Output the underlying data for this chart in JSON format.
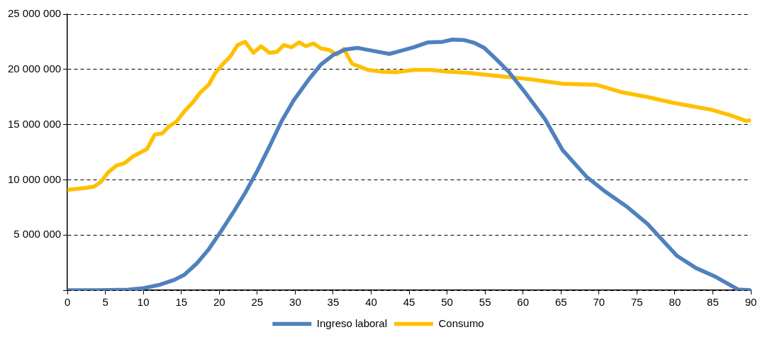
{
  "chart_data": {
    "type": "line",
    "xlim": [
      0,
      90
    ],
    "xticks": [
      0,
      5,
      10,
      15,
      20,
      25,
      30,
      35,
      40,
      45,
      50,
      55,
      60,
      65,
      70,
      75,
      80,
      85,
      90
    ],
    "ylim": [
      0,
      25000000
    ],
    "yticks": [
      {
        "value": 0,
        "label": null
      },
      {
        "value": 5000000,
        "label": "5 000 000"
      },
      {
        "value": 10000000,
        "label": "10 000 000"
      },
      {
        "value": 15000000,
        "label": "15 000 000"
      },
      {
        "value": 20000000,
        "label": "20 000 000"
      },
      {
        "value": 25000000,
        "label": "25 000 000"
      }
    ],
    "grid": "y",
    "legend": "bottom",
    "marker": "none",
    "line_style": "solid",
    "series": [
      {
        "name": "Ingreso laboral",
        "color": "#4f81bd",
        "x": [
          0,
          4,
          8,
          9.9,
          12.2,
          14.1,
          15.4,
          17,
          18.6,
          20.2,
          21.8,
          23.4,
          25,
          26.6,
          28.2,
          29.8,
          31.8,
          33.4,
          35,
          36.6,
          38.2,
          40.1,
          42.4,
          44,
          45.6,
          47.5,
          49.4,
          50.7,
          52.3,
          53.6,
          54.9,
          56.5,
          58.1,
          60.4,
          62.9,
          65.2,
          68.4,
          70.6,
          73.8,
          76.4,
          80.3,
          82.8,
          85.4,
          88.3,
          90
        ],
        "values": [
          0,
          0,
          50000,
          170000,
          500000,
          940000,
          1400000,
          2400000,
          3700000,
          5300000,
          7000000,
          8800000,
          10800000,
          13000000,
          15300000,
          17200000,
          19100000,
          20450000,
          21300000,
          21800000,
          21950000,
          21700000,
          21400000,
          21700000,
          22000000,
          22450000,
          22500000,
          22700000,
          22650000,
          22400000,
          21950000,
          20900000,
          19800000,
          17800000,
          15500000,
          12700000,
          10250000,
          9050000,
          7500000,
          6000000,
          3100000,
          2000000,
          1200000,
          70000,
          0
        ]
      },
      {
        "name": "Consumo",
        "color": "#ffc000",
        "x": [
          0,
          2.5,
          3.5,
          4.4,
          5.4,
          6.5,
          7.5,
          8.6,
          10.5,
          11.5,
          12.5,
          13.4,
          14.4,
          15.4,
          16.5,
          17.5,
          18.6,
          19.5,
          20.5,
          21.5,
          22.4,
          23.4,
          24.5,
          25.5,
          26.6,
          27.6,
          28.5,
          29.5,
          30.5,
          31.4,
          32.4,
          33.4,
          34.5,
          35.5,
          36.4,
          37.5,
          38.5,
          39.6,
          41.4,
          43.3,
          45.6,
          47.8,
          50.1,
          52.7,
          54.6,
          57.5,
          61,
          65.2,
          69.7,
          72.9,
          76.4,
          79.6,
          82.8,
          84.8,
          87.3,
          89.3,
          90
        ],
        "values": [
          9100000,
          9270000,
          9380000,
          9800000,
          10700000,
          11300000,
          11500000,
          12100000,
          12800000,
          14100000,
          14200000,
          14850000,
          15300000,
          16200000,
          17000000,
          17900000,
          18600000,
          19700000,
          20500000,
          21200000,
          22200000,
          22500000,
          21500000,
          22100000,
          21500000,
          21600000,
          22200000,
          22000000,
          22450000,
          22100000,
          22350000,
          21900000,
          21750000,
          21350000,
          21850000,
          20500000,
          20250000,
          19950000,
          19800000,
          19750000,
          19950000,
          19950000,
          19800000,
          19700000,
          19550000,
          19350000,
          19100000,
          18700000,
          18600000,
          17950000,
          17500000,
          17000000,
          16600000,
          16350000,
          15850000,
          15350000,
          15400000
        ]
      }
    ]
  }
}
